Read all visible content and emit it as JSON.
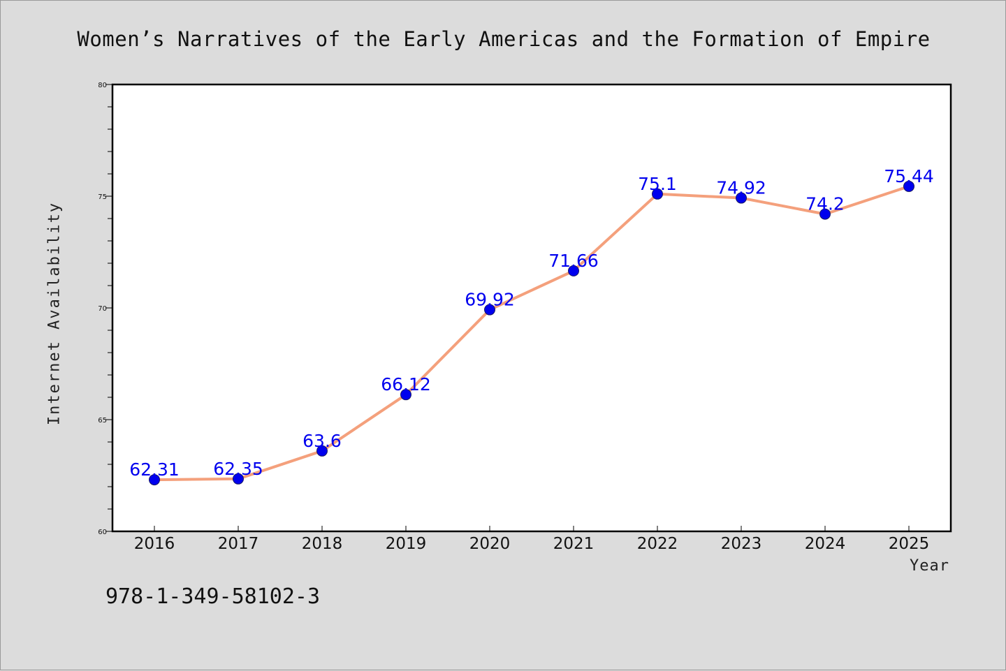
{
  "chart_data": {
    "type": "line",
    "title": "Women’s Narratives of the Early Americas and the Formation of Empire",
    "xlabel": "Year",
    "ylabel": "Internet Availability",
    "x": [
      "2016",
      "2017",
      "2018",
      "2019",
      "2020",
      "2021",
      "2022",
      "2023",
      "2024",
      "2025"
    ],
    "series": [
      {
        "values": [
          62.31,
          62.35,
          63.6,
          66.12,
          69.92,
          71.66,
          75.1,
          74.92,
          74.2,
          75.44
        ]
      }
    ],
    "data_labels": [
      "62.31",
      "62.35",
      "63.6",
      "66.12",
      "69.92",
      "71.66",
      "75.1",
      "74.92",
      "74.2",
      "75.44"
    ],
    "ylim": [
      60,
      80
    ],
    "yticks": [
      "60",
      "65",
      "70",
      "75",
      "80"
    ],
    "grid": false,
    "line_color": "#f4a07c",
    "marker_color": "#0000ee",
    "label_color": "#0000ee"
  },
  "footer": {
    "isbn": "978-1-349-58102-3"
  }
}
